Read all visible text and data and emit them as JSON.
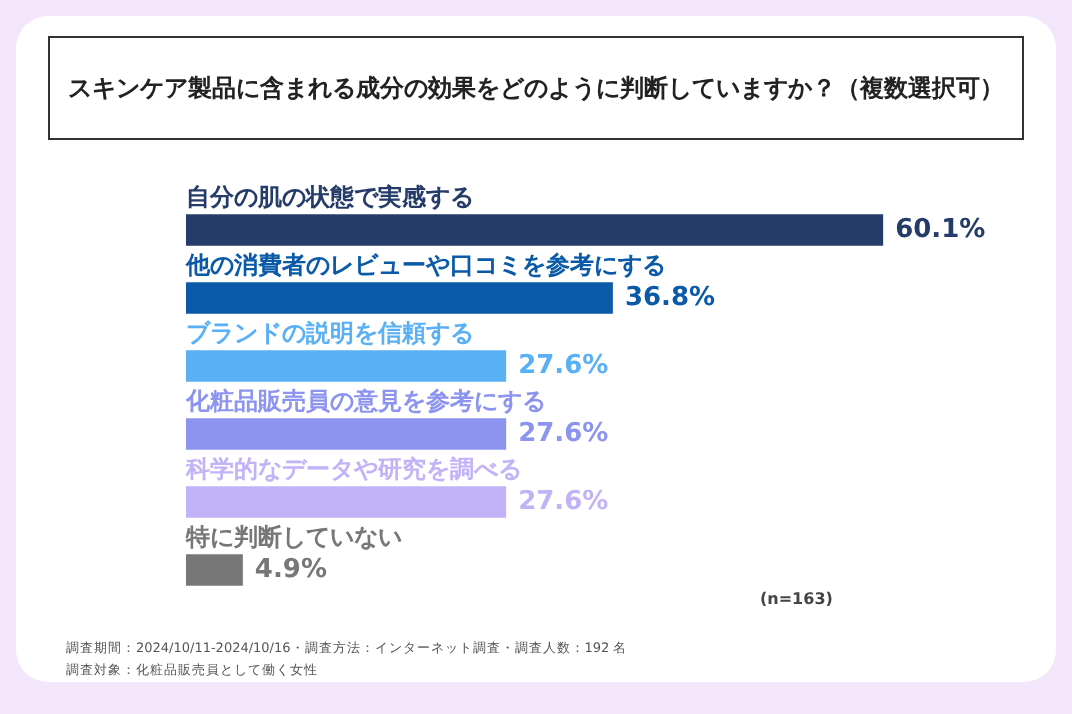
{
  "chart_data": {
    "type": "bar",
    "orientation": "horizontal",
    "title": "スキンケア製品に含まれる成分の効果をどのように判断していますか？（複数選択可）",
    "categories": [
      "自分の肌の状態で実感する",
      "他の消費者のレビューや口コミを参考にする",
      "ブランドの説明を信頼する",
      "化粧品販売員の意見を参考にする",
      "科学的なデータや研究を調べる",
      "特に判断していない"
    ],
    "values": [
      60.1,
      36.8,
      27.6,
      27.6,
      27.6,
      4.9
    ],
    "value_labels": [
      "60.1%",
      "36.8%",
      "27.6%",
      "27.6%",
      "27.6%",
      "4.9%"
    ],
    "colors": [
      "#253c6a",
      "#0a5aa8",
      "#5ab0f5",
      "#8c94f0",
      "#c2b3f7",
      "#777777"
    ],
    "annotations": [
      "(n=163)",
      "調査期間：2024/10/11-2024/10/16・調査方法：インターネット調査・調査人数：192 名",
      "調査対象：化粧品販売員として働く女性"
    ]
  }
}
